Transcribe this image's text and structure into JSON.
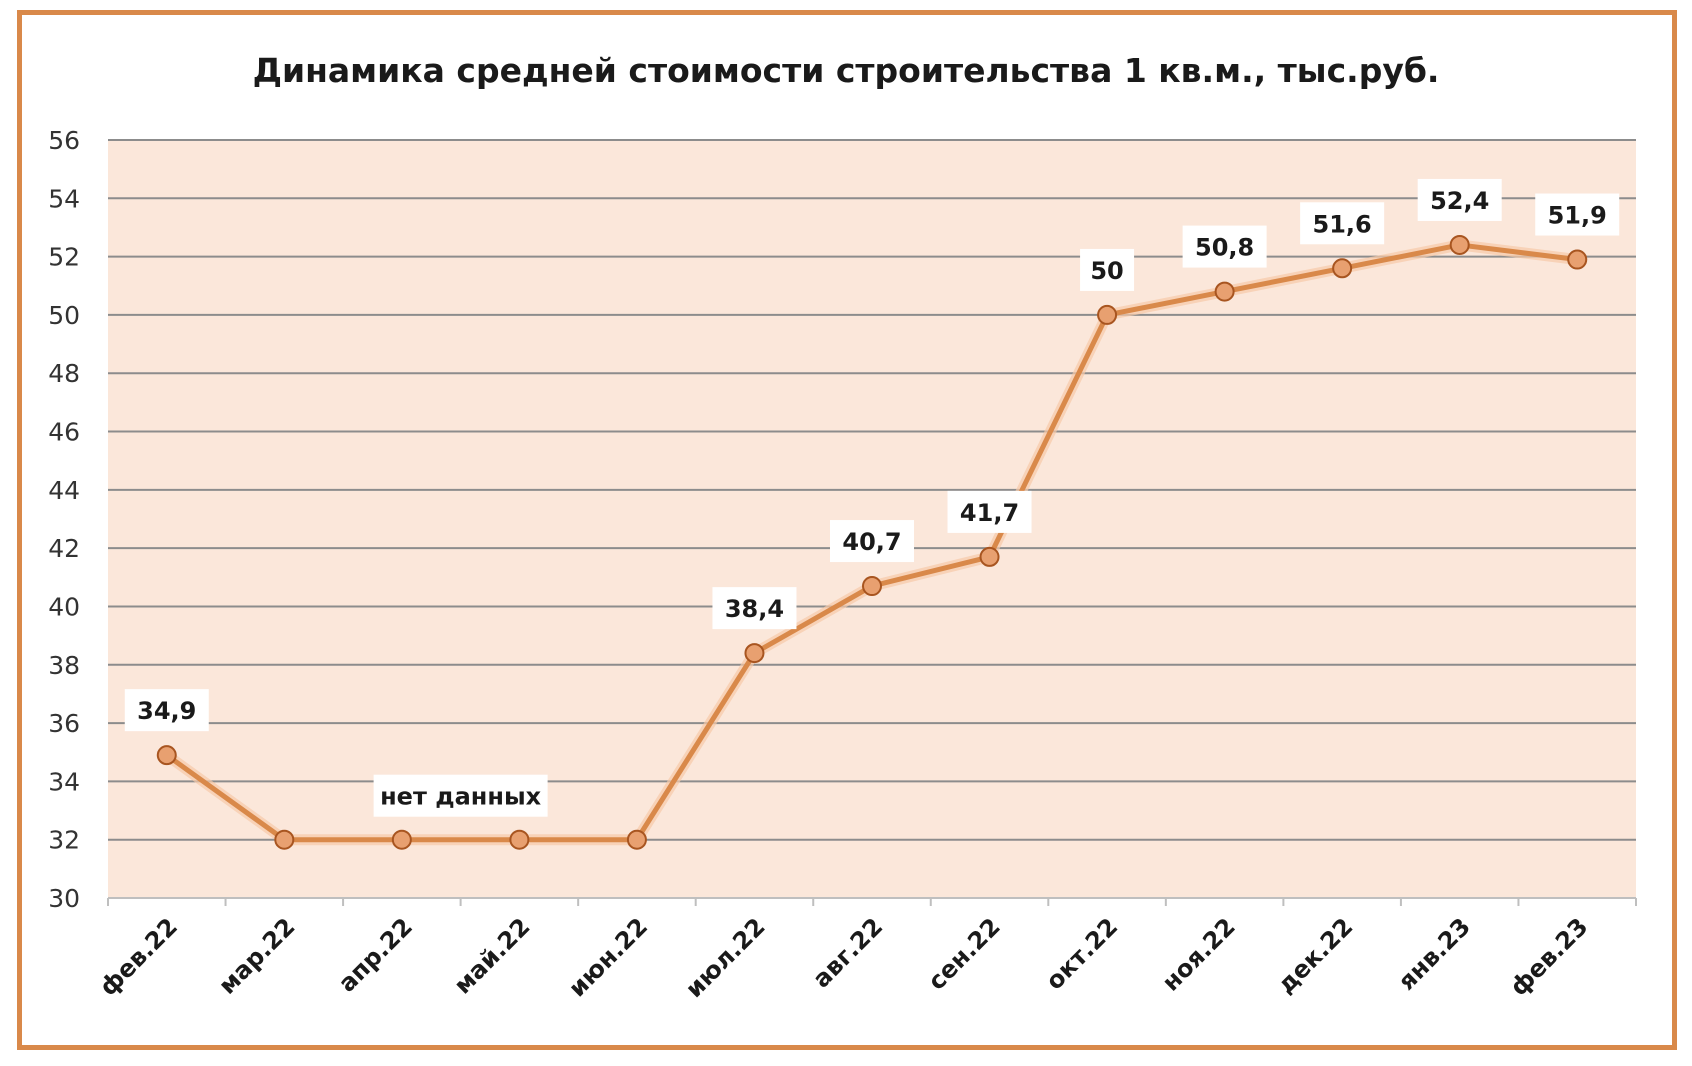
{
  "chart_data": {
    "type": "line",
    "title": "Динамика средней стоимости строительства 1 кв.м., тыс.руб.",
    "xlabel": "",
    "ylabel": "",
    "categories": [
      "фев.22",
      "мар.22",
      "апр.22",
      "май.22",
      "июн.22",
      "июл.22",
      "авг.22",
      "сен.22",
      "окт.22",
      "ноя.22",
      "дек.22",
      "янв.23",
      "фев.23"
    ],
    "series": [
      {
        "values": [
          34.9,
          32,
          32,
          32,
          32,
          38.4,
          40.7,
          41.7,
          50,
          50.8,
          51.6,
          52.4,
          51.9
        ],
        "data_labels": [
          "34,9",
          "",
          "",
          "",
          "",
          "38,4",
          "40,7",
          "41,7",
          "50",
          "50,8",
          "51,6",
          "52,4",
          "51,9"
        ]
      }
    ],
    "annotation": {
      "text": "нет данных",
      "category_index": 2.5
    },
    "ylim": [
      30,
      56
    ],
    "yticks": [
      "30",
      "32",
      "34",
      "36",
      "38",
      "40",
      "42",
      "44",
      "46",
      "48",
      "50",
      "52",
      "54",
      "56"
    ],
    "grid": true,
    "legend": "none",
    "colors": {
      "line": "#d9894a",
      "marker_fill": "#e8a070",
      "marker_stroke": "#a85520",
      "plot_background": "#fbe7da",
      "gridline": "#8c8c8c",
      "frame": "#d9894a"
    }
  }
}
